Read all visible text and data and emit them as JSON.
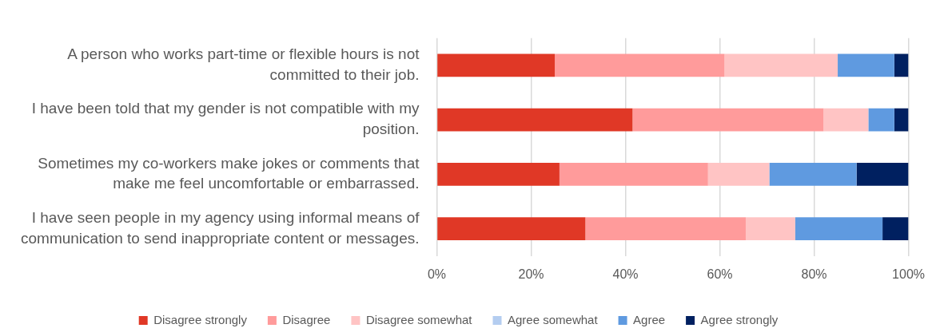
{
  "chart_data": {
    "type": "bar",
    "orientation": "horizontal",
    "stacked": true,
    "categories": [
      "A person who works part-time or flexible hours is not committed to their job.",
      "I have been told that my gender is not compatible with my position.",
      "Sometimes my co-workers make jokes or comments that make me feel uncomfortable or embarrassed.",
      "I have seen people in my agency using informal means of communication to send inappropriate content or messages."
    ],
    "series": [
      {
        "name": "Disagree strongly",
        "color": "#e03826",
        "values": [
          25,
          41.5,
          26,
          31.5
        ]
      },
      {
        "name": "Disagree",
        "color": "#ff9b9b",
        "values": [
          36,
          40.5,
          31.5,
          34
        ]
      },
      {
        "name": "Disagree somewhat",
        "color": "#ffc4c4",
        "values": [
          24,
          9.5,
          13,
          10.5
        ]
      },
      {
        "name": "Agree somewhat",
        "color": "#b4cdf0",
        "values": [
          0,
          0,
          0,
          0
        ]
      },
      {
        "name": "Agree",
        "color": "#5f9ae0",
        "values": [
          12,
          5.5,
          18.5,
          18.5
        ]
      },
      {
        "name": "Agree strongly",
        "color": "#002060",
        "values": [
          3,
          3,
          11,
          5.5
        ]
      }
    ],
    "xlim": [
      0,
      100
    ],
    "xticks": [
      {
        "value": 0,
        "label": "0%"
      },
      {
        "value": 20,
        "label": "20%"
      },
      {
        "value": 40,
        "label": "40%"
      },
      {
        "value": 60,
        "label": "60%"
      },
      {
        "value": 80,
        "label": "80%"
      },
      {
        "value": 100,
        "label": "100%"
      }
    ],
    "grid": "x",
    "legend": "bottom"
  }
}
